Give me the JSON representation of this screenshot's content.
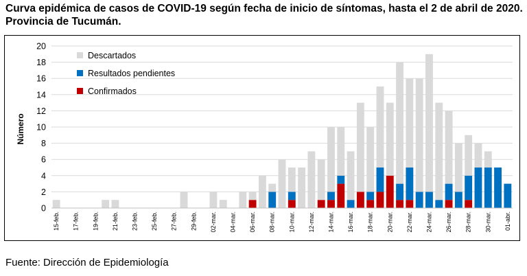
{
  "header": {
    "title": "Curva epidémica de casos de COVID-19 según fecha de inicio de síntomas, hasta el 2 de abril de 2020. Provincia de Tucumán."
  },
  "footer": {
    "source": "Fuente: Dirección de Epidemiología"
  },
  "chart_data": {
    "type": "bar",
    "stacked": true,
    "title": "Curva epidémica de casos de COVID-19 según fecha de inicio de síntomas, hasta el 2 de abril de 2020. Provincia de Tucumán.",
    "xlabel": "",
    "ylabel": "Número",
    "ylim": [
      0,
      20
    ],
    "yticks": [
      0,
      2,
      4,
      6,
      8,
      10,
      12,
      14,
      16,
      18,
      20
    ],
    "grid": true,
    "legend_position": "top-left",
    "categories": [
      "15-feb.",
      "16-feb.",
      "17-feb.",
      "18-feb.",
      "19-feb.",
      "20-feb.",
      "21-feb.",
      "22-feb.",
      "23-feb.",
      "24-feb.",
      "25-feb.",
      "26-feb.",
      "27-feb.",
      "28-feb.",
      "29-feb.",
      "01-mar.",
      "02-mar.",
      "03-mar.",
      "04-mar.",
      "05-mar.",
      "06-mar.",
      "07-mar.",
      "08-mar.",
      "09-mar.",
      "10-mar.",
      "11-mar.",
      "12-mar.",
      "13-mar.",
      "14-mar.",
      "15-mar.",
      "16-mar.",
      "17-mar.",
      "18-mar.",
      "19-mar.",
      "20-mar.",
      "21-mar.",
      "22-mar.",
      "23-mar.",
      "24-mar.",
      "25-mar.",
      "26-mar.",
      "27-mar.",
      "28-mar.",
      "29-mar.",
      "30-mar.",
      "31-mar.",
      "01-abr."
    ],
    "tick_labels": [
      "15-feb.",
      "",
      "17-feb.",
      "",
      "19-feb.",
      "",
      "21-feb.",
      "",
      "23-feb.",
      "",
      "25-feb.",
      "",
      "27-feb.",
      "",
      "29-feb.",
      "",
      "02-mar.",
      "",
      "04-mar.",
      "",
      "06-mar.",
      "",
      "08-mar.",
      "",
      "10-mar.",
      "",
      "12-mar.",
      "",
      "14-mar.",
      "",
      "16-mar.",
      "",
      "18-mar.",
      "",
      "20-mar.",
      "",
      "22-mar.",
      "",
      "24-mar.",
      "",
      "26-mar.",
      "",
      "28-mar.",
      "",
      "30-mar.",
      "",
      "01-abr."
    ],
    "series": [
      {
        "name": "Confirmados",
        "color": "#c00000",
        "values": [
          0,
          0,
          0,
          0,
          0,
          0,
          0,
          0,
          0,
          0,
          0,
          0,
          0,
          0,
          0,
          0,
          0,
          0,
          0,
          0,
          1,
          0,
          0,
          0,
          1,
          0,
          0,
          1,
          1,
          3,
          0,
          2,
          1,
          2,
          4,
          1,
          1,
          0,
          0,
          0,
          1,
          0,
          1,
          0,
          0,
          0,
          0
        ]
      },
      {
        "name": "Resultados pendientes",
        "color": "#0070c0",
        "values": [
          0,
          0,
          0,
          0,
          0,
          0,
          0,
          0,
          0,
          0,
          0,
          0,
          0,
          0,
          0,
          0,
          0,
          0,
          0,
          0,
          0,
          0,
          2,
          0,
          1,
          0,
          0,
          0,
          1,
          1,
          1,
          0,
          1,
          3,
          0,
          2,
          4,
          2,
          2,
          1,
          2,
          2,
          3,
          5,
          5,
          5,
          3
        ]
      },
      {
        "name": "Descartados",
        "color": "#d9d9d9",
        "values": [
          1,
          0,
          0,
          0,
          0,
          1,
          1,
          0,
          0,
          0,
          0,
          0,
          0,
          2,
          0,
          0,
          2,
          1,
          0,
          2,
          1,
          4,
          1,
          6,
          3,
          5,
          7,
          5,
          8,
          6,
          6,
          11,
          8,
          10,
          9,
          15,
          11,
          14,
          17,
          12,
          9,
          6,
          5,
          3,
          2,
          0,
          0
        ]
      }
    ],
    "legend_order": [
      "Descartados",
      "Resultados pendientes",
      "Confirmados"
    ]
  }
}
